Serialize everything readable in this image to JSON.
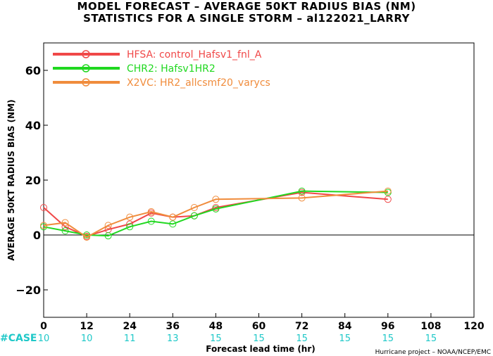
{
  "title_line1": "MODEL FORECAST – AVERAGE 50KT RADIUS BIAS (NM)",
  "title_line2": "STATISTICS FOR A SINGLE STORM – al122021_LARRY",
  "case_label": "#CASE",
  "case_counts": [
    {
      "x": 0,
      "n": "10"
    },
    {
      "x": 12,
      "n": "10"
    },
    {
      "x": 24,
      "n": "11"
    },
    {
      "x": 36,
      "n": "13"
    },
    {
      "x": 48,
      "n": "15"
    },
    {
      "x": 60,
      "n": "15"
    },
    {
      "x": 72,
      "n": "15"
    },
    {
      "x": 84,
      "n": "15"
    },
    {
      "x": 96,
      "n": "15"
    },
    {
      "x": 108,
      "n": "15"
    }
  ],
  "credit": "Hurricane project – NOAA/NCEP/EMC",
  "colors": {
    "case": "#1fc8c8",
    "zero_line": "#000000"
  },
  "chart_data": {
    "type": "line",
    "xlabel": "Forecast lead time (hr)",
    "ylabel": "AVERAGE 50KT RADIUS BIAS (NM)",
    "xlim": [
      0,
      120
    ],
    "ylim": [
      -30,
      70
    ],
    "xticks": [
      0,
      12,
      24,
      36,
      48,
      60,
      72,
      84,
      96,
      108,
      120
    ],
    "yticks": [
      -20,
      0,
      20,
      40,
      60
    ],
    "grid": false,
    "legend_position": "top-left",
    "series": [
      {
        "name": "HFSA: control_Hafsv1_fnl_A",
        "color": "#f04848",
        "x": [
          0,
          6,
          12,
          18,
          24,
          30,
          36,
          42,
          48,
          72,
          96
        ],
        "y": [
          10,
          3,
          -0.5,
          2,
          4,
          8,
          6.5,
          7,
          10,
          15.5,
          13
        ]
      },
      {
        "name": "CHR2: Hafsv1HR2",
        "color": "#20d820",
        "x": [
          0,
          6,
          12,
          18,
          24,
          30,
          36,
          42,
          48,
          72,
          96
        ],
        "y": [
          3,
          1.5,
          0,
          -0.3,
          3,
          5,
          4,
          7,
          9.5,
          16,
          15.5
        ]
      },
      {
        "name": "X2VC: HR2_allcsmf20_varycs",
        "color": "#f08c3c",
        "x": [
          0,
          6,
          12,
          18,
          24,
          30,
          36,
          42,
          48,
          72,
          96
        ],
        "y": [
          3.5,
          4.5,
          -0.8,
          3.5,
          6.5,
          8.5,
          6.5,
          10,
          13,
          13.5,
          16
        ]
      }
    ]
  }
}
